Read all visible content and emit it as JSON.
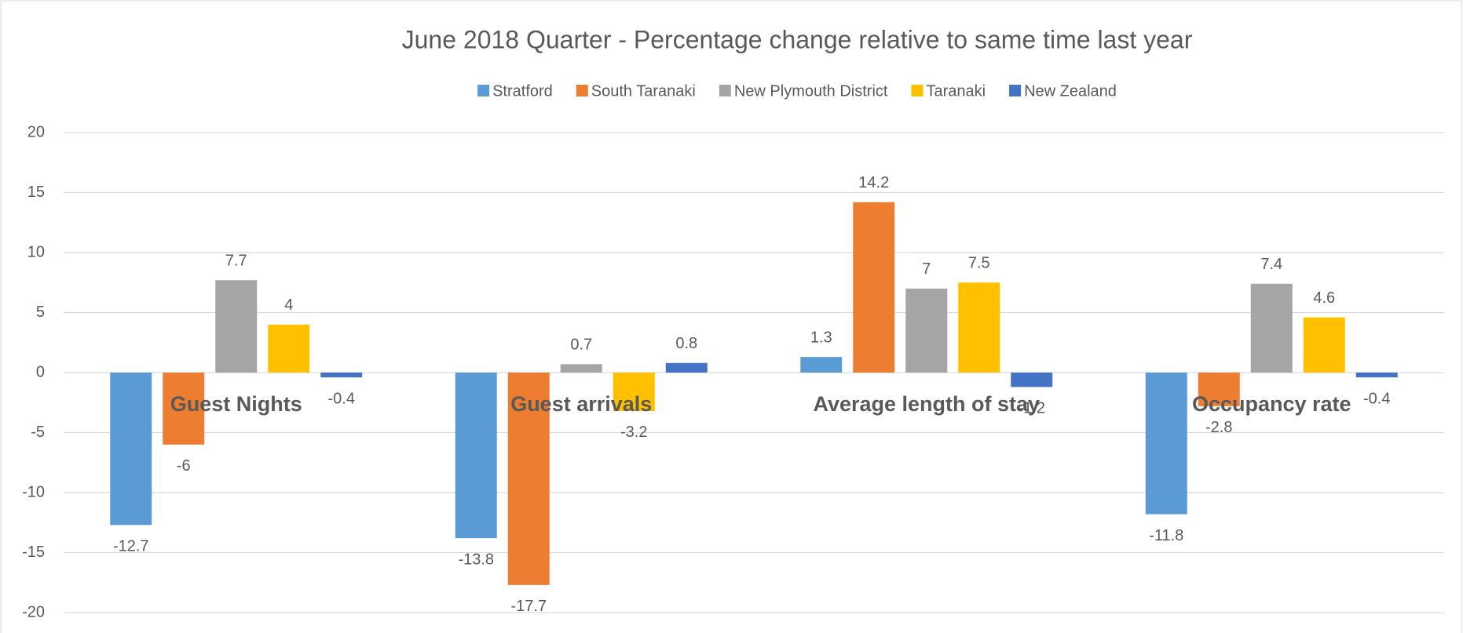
{
  "chart_data": {
    "type": "bar",
    "title": "June 2018 Quarter  - Percentage change relative to same time last year",
    "categories": [
      "Guest Nights",
      "Guest arrivals",
      "Average length of stay",
      "Occupancy rate"
    ],
    "series": [
      {
        "name": "Stratford",
        "color": "#5b9bd5",
        "values": [
          -12.7,
          -13.8,
          1.3,
          -11.8
        ]
      },
      {
        "name": "South Taranaki",
        "color": "#ed7d31",
        "values": [
          -6,
          -17.7,
          14.2,
          -2.8
        ]
      },
      {
        "name": "New Plymouth District",
        "color": "#a5a5a5",
        "values": [
          7.7,
          0.7,
          7,
          7.4
        ]
      },
      {
        "name": "Taranaki",
        "color": "#ffc000",
        "values": [
          4,
          -3.2,
          7.5,
          4.6
        ]
      },
      {
        "name": "New Zealand",
        "color": "#4472c4",
        "values": [
          -0.4,
          0.8,
          -1.2,
          -0.4
        ]
      }
    ],
    "ylim": [
      -20,
      20
    ],
    "yticks": [
      -20,
      -15,
      -10,
      -5,
      0,
      5,
      10,
      15,
      20
    ],
    "grid": true,
    "legend": "top"
  }
}
